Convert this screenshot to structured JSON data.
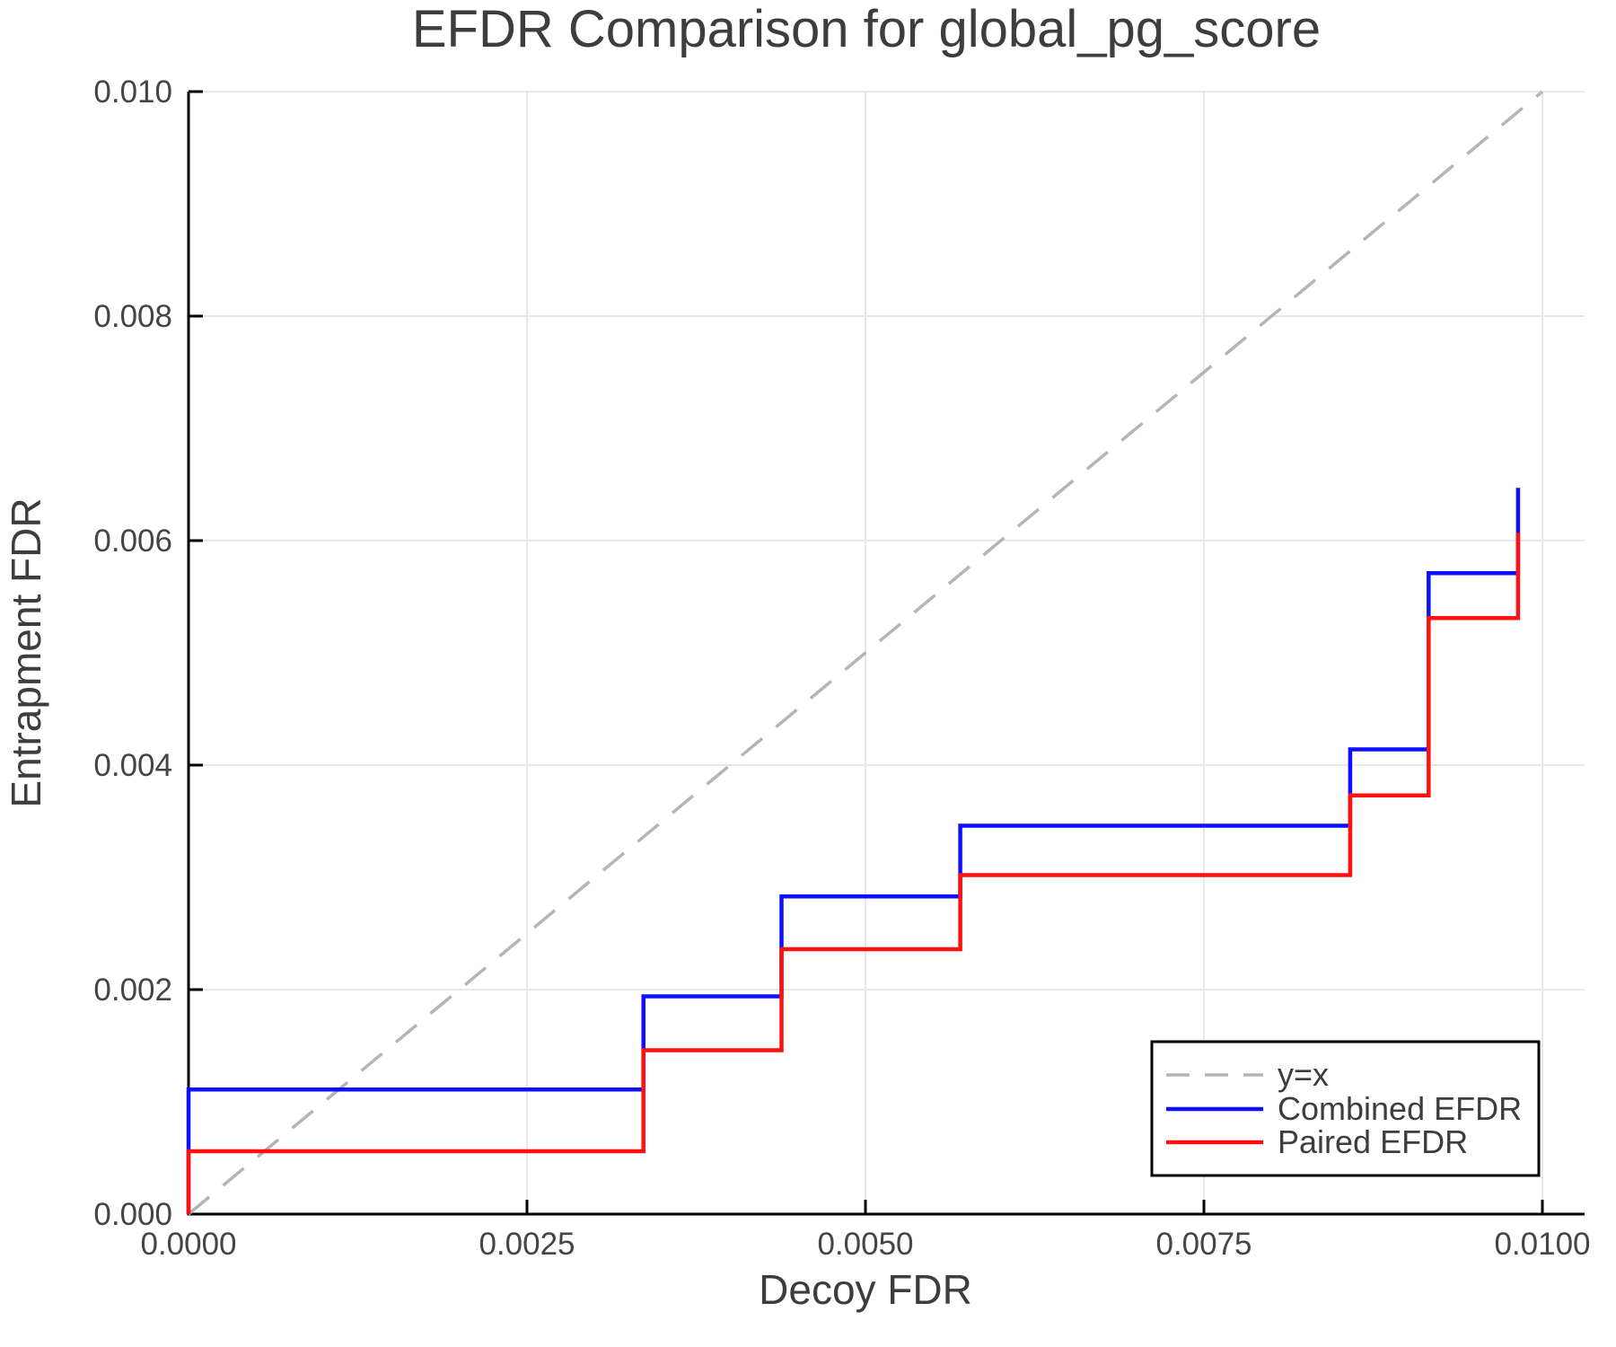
{
  "chart_data": {
    "type": "line",
    "title": "EFDR Comparison for global_pg_score",
    "xlabel": "Decoy FDR",
    "ylabel": "Entrapment FDR",
    "xlim": [
      0,
      0.0103
    ],
    "ylim": [
      0,
      0.01
    ],
    "grid": true,
    "legend_position": "lower right",
    "x_ticks": {
      "values": [
        0,
        0.0025,
        0.005,
        0.0075,
        0.01
      ],
      "labels": [
        "0.0000",
        "0.0025",
        "0.0050",
        "0.0075",
        "0.0100"
      ]
    },
    "y_ticks": {
      "values": [
        0,
        0.002,
        0.004,
        0.006,
        0.008,
        0.01
      ],
      "labels": [
        "0.000",
        "0.002",
        "0.004",
        "0.006",
        "0.008",
        "0.010"
      ]
    },
    "colors": {
      "grid": "#e8e8e8",
      "spine": "#000000",
      "text": "#3d3d3d",
      "reference": "#b5b5b5",
      "combined": "#0f0fff",
      "paired": "#ff1111"
    },
    "series": [
      {
        "name": "y=x",
        "style": "dashed",
        "color": "#b5b5b5",
        "points": [
          [
            0,
            0
          ],
          [
            0.01,
            0.01
          ]
        ]
      },
      {
        "name": "Combined EFDR",
        "style": "solid",
        "color": "#0f0fff",
        "points": [
          [
            0,
            0
          ],
          [
            0,
            0.00111
          ],
          [
            0.00336,
            0.00111
          ],
          [
            0.00336,
            0.00194
          ],
          [
            0.00438,
            0.00194
          ],
          [
            0.00438,
            0.00283
          ],
          [
            0.0057,
            0.00283
          ],
          [
            0.0057,
            0.00346
          ],
          [
            0.00858,
            0.00346
          ],
          [
            0.00858,
            0.00414
          ],
          [
            0.00916,
            0.00414
          ],
          [
            0.00916,
            0.00571
          ],
          [
            0.00982,
            0.00571
          ],
          [
            0.00982,
            0.00647
          ]
        ]
      },
      {
        "name": "Paired EFDR",
        "style": "solid",
        "color": "#ff1111",
        "points": [
          [
            0,
            0
          ],
          [
            0,
            0.00056
          ],
          [
            0.00336,
            0.00056
          ],
          [
            0.00336,
            0.00146
          ],
          [
            0.00438,
            0.00146
          ],
          [
            0.00438,
            0.00236
          ],
          [
            0.0057,
            0.00236
          ],
          [
            0.0057,
            0.00302
          ],
          [
            0.00858,
            0.00302
          ],
          [
            0.00858,
            0.00373
          ],
          [
            0.00916,
            0.00373
          ],
          [
            0.00916,
            0.00531
          ],
          [
            0.00982,
            0.00531
          ],
          [
            0.00982,
            0.00607
          ]
        ]
      }
    ]
  }
}
